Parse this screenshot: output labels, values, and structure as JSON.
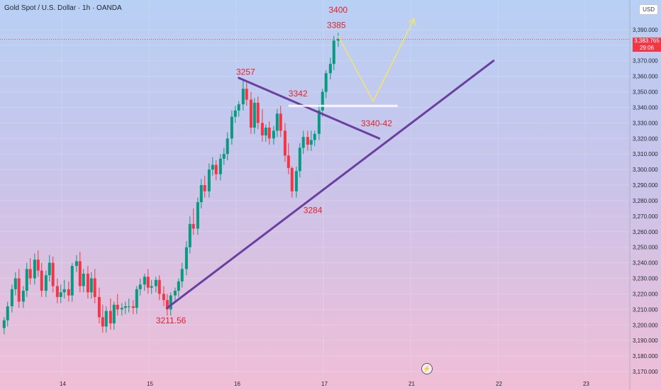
{
  "header": {
    "symbol_title": "Gold Spot / U.S. Dollar · 1h · OANDA",
    "currency": "USD"
  },
  "current_price": {
    "value": "3,383.765",
    "countdown": "29:06"
  },
  "colors": {
    "bull": "#089981",
    "bear": "#f23645",
    "trendline": "#6b3fa0",
    "projection": "#f5e46b",
    "annotation": "#e5222e"
  },
  "chart_data": {
    "type": "candlestick",
    "title": "Gold Spot / U.S. Dollar · 1h · OANDA",
    "ylim": [
      3170,
      3400
    ],
    "y_ticks": [
      "3,170.000",
      "3,180.000",
      "3,190.000",
      "3,200.000",
      "3,210.000",
      "3,220.000",
      "3,230.000",
      "3,240.000",
      "3,250.000",
      "3,260.000",
      "3,270.000",
      "3,280.000",
      "3,290.000",
      "3,300.000",
      "3,310.000",
      "3,320.000",
      "3,330.000",
      "3,340.000",
      "3,350.000",
      "3,360.000",
      "3,370.000",
      "3,380.000",
      "3,390.000"
    ],
    "x_ticks": [
      {
        "label": "14",
        "t": 14.0
      },
      {
        "label": "15",
        "t": 15.0
      },
      {
        "label": "16",
        "t": 16.0
      },
      {
        "label": "17",
        "t": 17.0
      },
      {
        "label": "21",
        "t": 18.0
      },
      {
        "label": "22",
        "t": 19.0
      },
      {
        "label": "23",
        "t": 20.0
      }
    ],
    "candles": [
      {
        "t": 13.34,
        "o": 3198,
        "h": 3205,
        "c": 3203
      },
      {
        "t": 13.38,
        "o": 3203,
        "h": 3215,
        "c": 3212
      },
      {
        "t": 13.43,
        "o": 3212,
        "h": 3226,
        "c": 3223
      },
      {
        "t": 13.47,
        "o": 3223,
        "h": 3234,
        "c": 3230
      },
      {
        "t": 13.51,
        "o": 3230,
        "h": 3236,
        "c": 3215
      },
      {
        "t": 13.56,
        "o": 3215,
        "h": 3225,
        "c": 3222
      },
      {
        "t": 13.6,
        "o": 3222,
        "h": 3240,
        "c": 3236
      },
      {
        "t": 13.64,
        "o": 3236,
        "h": 3243,
        "c": 3230
      },
      {
        "t": 13.69,
        "o": 3230,
        "h": 3246,
        "c": 3242
      },
      {
        "t": 13.73,
        "o": 3242,
        "h": 3248,
        "c": 3235
      },
      {
        "t": 13.77,
        "o": 3235,
        "h": 3240,
        "c": 3222
      },
      {
        "t": 13.82,
        "o": 3222,
        "h": 3235,
        "c": 3232
      },
      {
        "t": 13.86,
        "o": 3232,
        "h": 3245,
        "c": 3240
      },
      {
        "t": 13.9,
        "o": 3240,
        "h": 3244,
        "c": 3225
      },
      {
        "t": 13.95,
        "o": 3225,
        "h": 3230,
        "c": 3218
      },
      {
        "t": 13.99,
        "o": 3218,
        "h": 3226,
        "c": 3221
      },
      {
        "t": 14.03,
        "o": 3221,
        "h": 3229,
        "c": 3223
      },
      {
        "t": 14.08,
        "o": 3223,
        "h": 3228,
        "c": 3219
      },
      {
        "t": 14.12,
        "o": 3219,
        "h": 3240,
        "c": 3238
      },
      {
        "t": 14.17,
        "o": 3238,
        "h": 3245,
        "c": 3241
      },
      {
        "t": 14.21,
        "o": 3241,
        "h": 3247,
        "c": 3225
      },
      {
        "t": 14.25,
        "o": 3225,
        "h": 3236,
        "c": 3233
      },
      {
        "t": 14.3,
        "o": 3233,
        "h": 3238,
        "c": 3221
      },
      {
        "t": 14.34,
        "o": 3221,
        "h": 3234,
        "c": 3230
      },
      {
        "t": 14.38,
        "o": 3230,
        "h": 3236,
        "c": 3218
      },
      {
        "t": 14.43,
        "o": 3218,
        "h": 3224,
        "c": 3205
      },
      {
        "t": 14.47,
        "o": 3205,
        "h": 3213,
        "c": 3199
      },
      {
        "t": 14.51,
        "o": 3199,
        "h": 3212,
        "c": 3209
      },
      {
        "t": 14.56,
        "o": 3209,
        "h": 3217,
        "c": 3201
      },
      {
        "t": 14.6,
        "o": 3201,
        "h": 3215,
        "c": 3213
      },
      {
        "t": 14.64,
        "o": 3213,
        "h": 3220,
        "c": 3210
      },
      {
        "t": 14.69,
        "o": 3210,
        "h": 3214,
        "c": 3211
      },
      {
        "t": 14.73,
        "o": 3211,
        "h": 3215,
        "c": 3212
      },
      {
        "t": 14.77,
        "o": 3212,
        "h": 3217,
        "c": 3212
      },
      {
        "t": 14.82,
        "o": 3212,
        "h": 3216,
        "c": 3211
      },
      {
        "t": 14.86,
        "o": 3211,
        "h": 3225,
        "c": 3223
      },
      {
        "t": 14.9,
        "o": 3223,
        "h": 3230,
        "c": 3226
      },
      {
        "t": 14.95,
        "o": 3226,
        "h": 3233,
        "c": 3231
      },
      {
        "t": 14.99,
        "o": 3231,
        "h": 3236,
        "c": 3224
      },
      {
        "t": 15.03,
        "o": 3224,
        "h": 3229,
        "c": 3225
      },
      {
        "t": 15.08,
        "o": 3225,
        "h": 3231,
        "c": 3229
      },
      {
        "t": 15.12,
        "o": 3229,
        "h": 3232,
        "c": 3220
      },
      {
        "t": 15.17,
        "o": 3220,
        "h": 3225,
        "c": 3216
      },
      {
        "t": 15.21,
        "o": 3216,
        "h": 3220,
        "c": 3210
      },
      {
        "t": 15.25,
        "o": 3210,
        "h": 3221,
        "c": 3219
      },
      {
        "t": 15.3,
        "o": 3219,
        "h": 3224,
        "c": 3222
      },
      {
        "t": 15.34,
        "o": 3222,
        "h": 3230,
        "c": 3228
      },
      {
        "t": 15.38,
        "o": 3228,
        "h": 3240,
        "c": 3236
      },
      {
        "t": 15.43,
        "o": 3236,
        "h": 3254,
        "c": 3250
      },
      {
        "t": 15.47,
        "o": 3250,
        "h": 3270,
        "c": 3265
      },
      {
        "t": 15.51,
        "o": 3265,
        "h": 3275,
        "c": 3262
      },
      {
        "t": 15.56,
        "o": 3262,
        "h": 3282,
        "c": 3279
      },
      {
        "t": 15.6,
        "o": 3279,
        "h": 3294,
        "c": 3290
      },
      {
        "t": 15.64,
        "o": 3290,
        "h": 3296,
        "c": 3286
      },
      {
        "t": 15.69,
        "o": 3286,
        "h": 3304,
        "c": 3300
      },
      {
        "t": 15.73,
        "o": 3300,
        "h": 3308,
        "c": 3303
      },
      {
        "t": 15.77,
        "o": 3303,
        "h": 3306,
        "c": 3297
      },
      {
        "t": 15.82,
        "o": 3297,
        "h": 3310,
        "c": 3307
      },
      {
        "t": 15.86,
        "o": 3307,
        "h": 3314,
        "c": 3310
      },
      {
        "t": 15.9,
        "o": 3310,
        "h": 3324,
        "c": 3320
      },
      {
        "t": 15.95,
        "o": 3320,
        "h": 3338,
        "c": 3334
      },
      {
        "t": 15.99,
        "o": 3334,
        "h": 3341,
        "c": 3338
      },
      {
        "t": 16.03,
        "o": 3338,
        "h": 3344,
        "c": 3342
      },
      {
        "t": 16.08,
        "o": 3342,
        "h": 3358,
        "c": 3352
      },
      {
        "t": 16.12,
        "o": 3352,
        "h": 3356,
        "c": 3345
      },
      {
        "t": 16.17,
        "o": 3345,
        "h": 3350,
        "c": 3327
      },
      {
        "t": 16.21,
        "o": 3327,
        "h": 3346,
        "c": 3343
      },
      {
        "t": 16.25,
        "o": 3343,
        "h": 3347,
        "c": 3330
      },
      {
        "t": 16.3,
        "o": 3330,
        "h": 3339,
        "c": 3322
      },
      {
        "t": 16.34,
        "o": 3322,
        "h": 3329,
        "c": 3327
      },
      {
        "t": 16.38,
        "o": 3327,
        "h": 3331,
        "c": 3320
      },
      {
        "t": 16.43,
        "o": 3320,
        "h": 3328,
        "c": 3325
      },
      {
        "t": 16.47,
        "o": 3325,
        "h": 3339,
        "c": 3336
      },
      {
        "t": 16.51,
        "o": 3336,
        "h": 3341,
        "c": 3325
      },
      {
        "t": 16.56,
        "o": 3325,
        "h": 3330,
        "c": 3309
      },
      {
        "t": 16.6,
        "o": 3309,
        "h": 3317,
        "c": 3301
      },
      {
        "t": 16.64,
        "o": 3301,
        "h": 3302,
        "c": 3286
      },
      {
        "t": 16.69,
        "o": 3286,
        "h": 3302,
        "c": 3299
      },
      {
        "t": 16.73,
        "o": 3299,
        "h": 3317,
        "c": 3314
      },
      {
        "t": 16.77,
        "o": 3314,
        "h": 3325,
        "c": 3321
      },
      {
        "t": 16.82,
        "o": 3321,
        "h": 3325,
        "c": 3316
      },
      {
        "t": 16.86,
        "o": 3316,
        "h": 3325,
        "c": 3319
      },
      {
        "t": 16.9,
        "o": 3319,
        "h": 3325,
        "c": 3323
      },
      {
        "t": 16.95,
        "o": 3323,
        "h": 3342,
        "c": 3338
      },
      {
        "t": 16.99,
        "o": 3338,
        "h": 3352,
        "c": 3350
      },
      {
        "t": 17.03,
        "o": 3350,
        "h": 3364,
        "c": 3362
      },
      {
        "t": 17.08,
        "o": 3362,
        "h": 3372,
        "c": 3368
      },
      {
        "t": 17.12,
        "o": 3368,
        "h": 3386,
        "c": 3383
      },
      {
        "t": 17.17,
        "o": 3383,
        "h": 3388,
        "c": 3384
      }
    ],
    "annotations": [
      {
        "text": "3400",
        "t": 17.06,
        "v": 3401
      },
      {
        "text": "3385",
        "t": 17.04,
        "v": 3391
      },
      {
        "text": "3257",
        "t": 16.0,
        "v": 3361
      },
      {
        "text": "3342",
        "t": 16.6,
        "v": 3347
      },
      {
        "text": "3340-42",
        "t": 17.43,
        "v": 3328
      },
      {
        "text": "3284",
        "t": 16.77,
        "v": 3272
      },
      {
        "text": "3211.56",
        "t": 15.08,
        "v": 3201
      }
    ],
    "trend_lines": [
      {
        "name": "ascending-support",
        "t1": 15.21,
        "v1": 3211,
        "t2": 18.95,
        "v2": 3370
      },
      {
        "name": "descending-resistance",
        "t1": 16.03,
        "v1": 3359,
        "t2": 17.64,
        "v2": 3320
      }
    ],
    "horizontal_levels": [
      {
        "name": "support-3340",
        "t1": 16.6,
        "t2": 17.85,
        "v": 3341
      }
    ],
    "projection_path": [
      {
        "t": 17.17,
        "v": 3386
      },
      {
        "t": 17.57,
        "v": 3344
      },
      {
        "t": 18.04,
        "v": 3397
      }
    ],
    "last_price_line": 3383.765
  }
}
